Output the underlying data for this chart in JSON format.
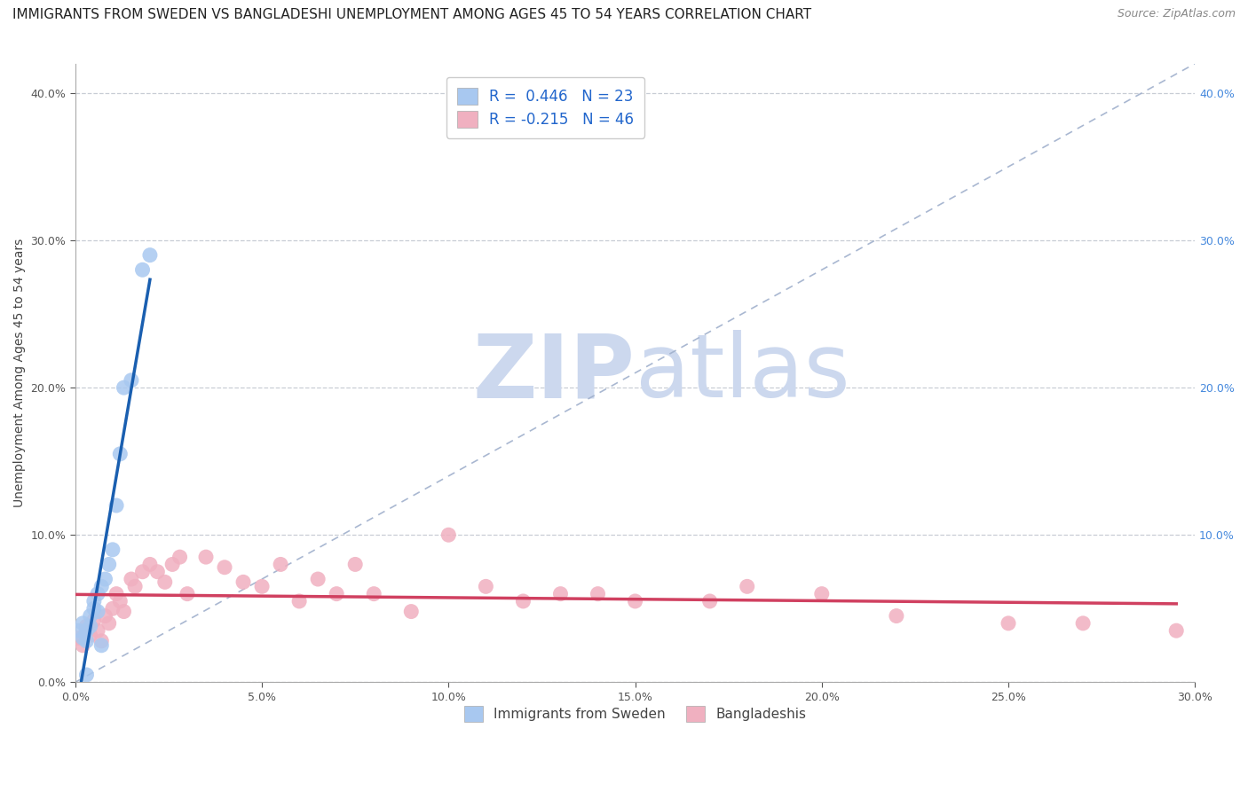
{
  "title": "IMMIGRANTS FROM SWEDEN VS BANGLADESHI UNEMPLOYMENT AMONG AGES 45 TO 54 YEARS CORRELATION CHART",
  "source": "Source: ZipAtlas.com",
  "ylabel": "Unemployment Among Ages 45 to 54 years",
  "xlabel_blue": "Immigrants from Sweden",
  "xlabel_pink": "Bangladeshis",
  "xlim": [
    0.0,
    0.3
  ],
  "ylim": [
    0.0,
    0.42
  ],
  "xticks": [
    0.0,
    0.05,
    0.1,
    0.15,
    0.2,
    0.25,
    0.3
  ],
  "yticks": [
    0.0,
    0.1,
    0.2,
    0.3,
    0.4
  ],
  "legend_r_blue": "R =  0.446",
  "legend_n_blue": "N = 23",
  "legend_r_pink": "R = -0.215",
  "legend_n_pink": "N = 46",
  "blue_scatter_x": [
    0.001,
    0.002,
    0.002,
    0.003,
    0.003,
    0.004,
    0.004,
    0.005,
    0.005,
    0.006,
    0.006,
    0.007,
    0.008,
    0.009,
    0.01,
    0.011,
    0.012,
    0.013,
    0.015,
    0.018,
    0.02,
    0.007,
    0.003
  ],
  "blue_scatter_y": [
    0.035,
    0.03,
    0.04,
    0.028,
    0.035,
    0.045,
    0.038,
    0.05,
    0.055,
    0.06,
    0.048,
    0.065,
    0.07,
    0.08,
    0.09,
    0.12,
    0.155,
    0.2,
    0.205,
    0.28,
    0.29,
    0.025,
    0.005
  ],
  "pink_scatter_x": [
    0.001,
    0.002,
    0.003,
    0.004,
    0.005,
    0.006,
    0.007,
    0.008,
    0.009,
    0.01,
    0.011,
    0.012,
    0.013,
    0.015,
    0.016,
    0.018,
    0.02,
    0.022,
    0.024,
    0.026,
    0.028,
    0.03,
    0.035,
    0.04,
    0.045,
    0.05,
    0.055,
    0.06,
    0.065,
    0.07,
    0.075,
    0.08,
    0.09,
    0.1,
    0.11,
    0.12,
    0.13,
    0.14,
    0.15,
    0.17,
    0.18,
    0.2,
    0.22,
    0.25,
    0.27,
    0.295
  ],
  "pink_scatter_y": [
    0.03,
    0.025,
    0.038,
    0.032,
    0.042,
    0.035,
    0.028,
    0.045,
    0.04,
    0.05,
    0.06,
    0.055,
    0.048,
    0.07,
    0.065,
    0.075,
    0.08,
    0.075,
    0.068,
    0.08,
    0.085,
    0.06,
    0.085,
    0.078,
    0.068,
    0.065,
    0.08,
    0.055,
    0.07,
    0.06,
    0.08,
    0.06,
    0.048,
    0.1,
    0.065,
    0.055,
    0.06,
    0.06,
    0.055,
    0.055,
    0.065,
    0.06,
    0.045,
    0.04,
    0.04,
    0.035
  ],
  "blue_line_color": "#1a5fb0",
  "pink_line_color": "#d04060",
  "blue_scatter_color": "#a8c8f0",
  "pink_scatter_color": "#f0b0c0",
  "dashed_line_color": "#a0b0cc",
  "watermark_zip": "ZIP",
  "watermark_atlas": "atlas",
  "watermark_color": "#ccd8ee",
  "background_color": "#ffffff",
  "title_fontsize": 11,
  "source_fontsize": 9,
  "axis_label_fontsize": 10,
  "tick_fontsize": 9,
  "legend_fontsize": 12
}
